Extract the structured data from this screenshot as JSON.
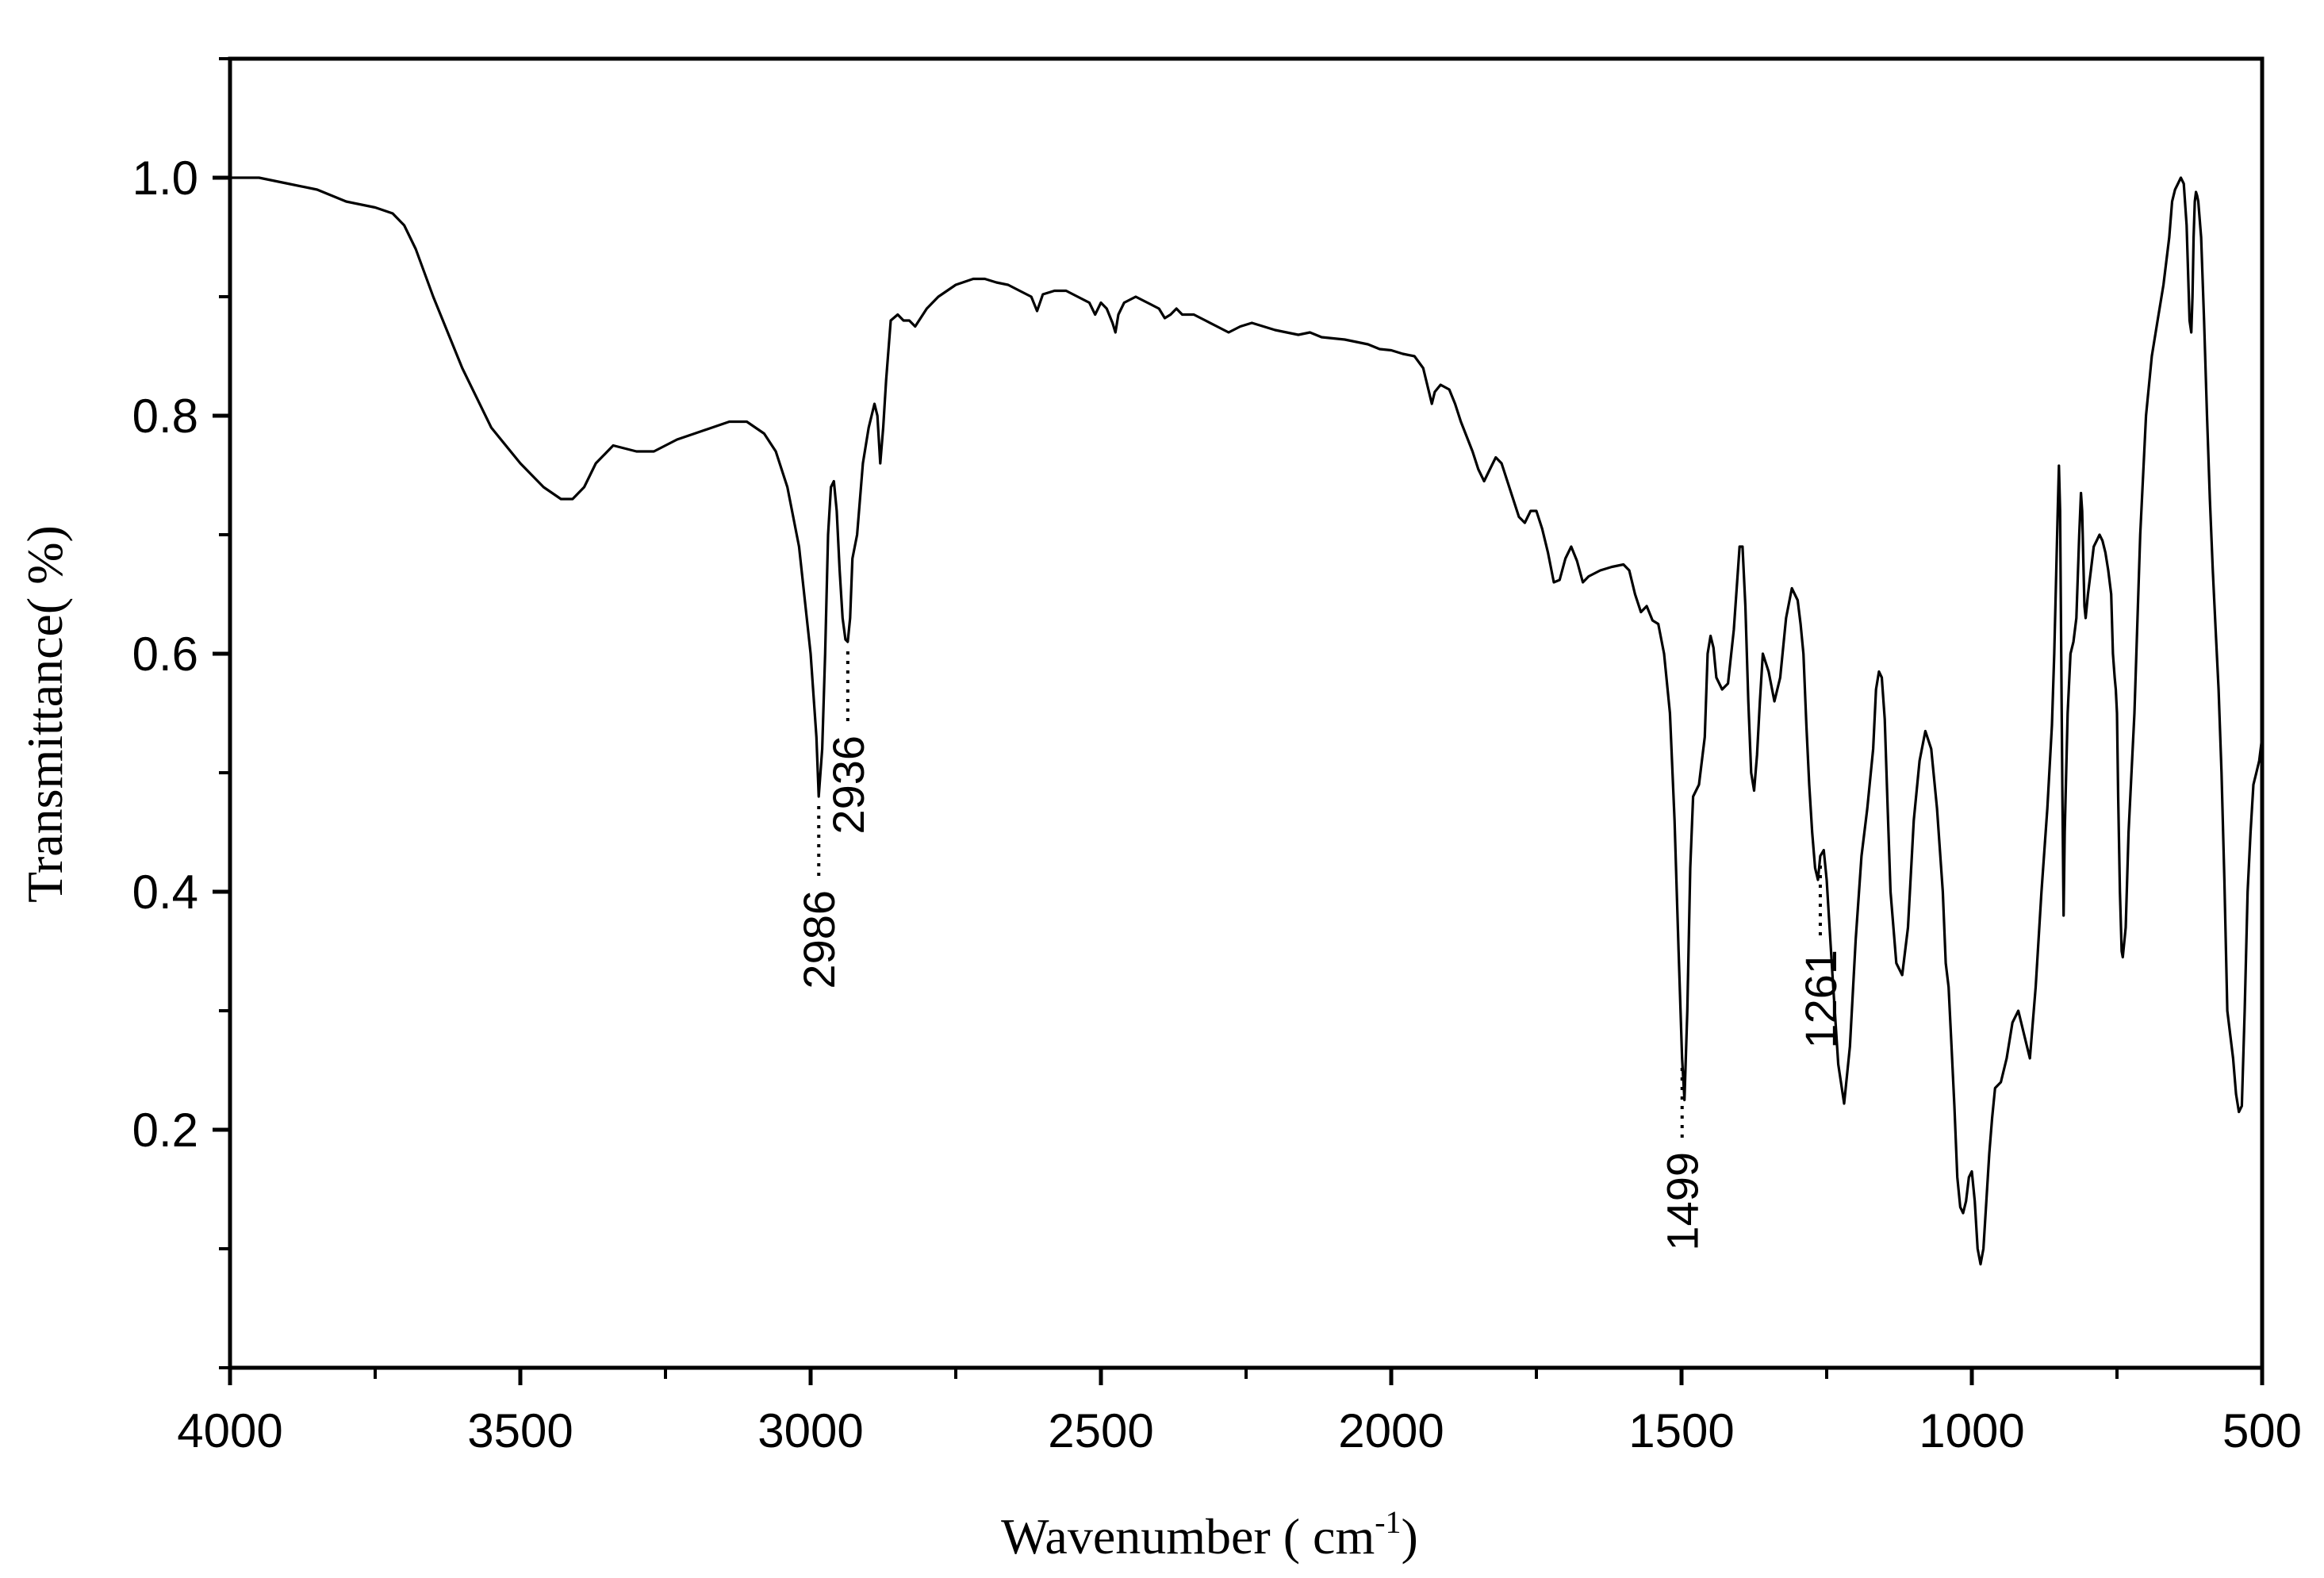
{
  "chart_data": {
    "type": "line",
    "title": "",
    "xlabel": "Wavenumber ( cm-1)",
    "xlabel_main": "Wavenumber (   cm",
    "xlabel_sup": "-1",
    "xlabel_close": ")",
    "ylabel": "Transmittance(   %)",
    "xlim": [
      4000,
      500
    ],
    "ylim": [
      0.0,
      1.1
    ],
    "x_reversed": true,
    "grid": false,
    "legend": "none",
    "x_ticks": [
      4000,
      3500,
      3000,
      2500,
      2000,
      1500,
      1000,
      500
    ],
    "x_tick_labels": [
      "4000",
      "3500",
      "3000",
      "2500",
      "2000",
      "1500",
      "1000",
      "500"
    ],
    "y_ticks": [
      0.2,
      0.4,
      0.6,
      0.8,
      1.0
    ],
    "y_tick_labels": [
      "0.2",
      "0.4",
      "0.6",
      "0.8",
      "1.0"
    ],
    "series": [
      {
        "x": [
          4000,
          3950,
          3900,
          3850,
          3800,
          3750,
          3720,
          3700,
          3680,
          3650,
          3600,
          3550,
          3500,
          3460,
          3430,
          3410,
          3390,
          3370,
          3340,
          3300,
          3270,
          3250,
          3230,
          3200,
          3170,
          3140,
          3110,
          3080,
          3060,
          3040,
          3020,
          3000,
          2990,
          2986,
          2980,
          2975,
          2970,
          2965,
          2960,
          2955,
          2950,
          2945,
          2940,
          2936,
          2932,
          2928,
          2920,
          2910,
          2900,
          2890,
          2885,
          2880,
          2875,
          2870,
          2862,
          2850,
          2840,
          2830,
          2820,
          2800,
          2780,
          2750,
          2720,
          2700,
          2680,
          2660,
          2640,
          2620,
          2610,
          2600,
          2580,
          2560,
          2540,
          2520,
          2510,
          2500,
          2490,
          2480,
          2475,
          2470,
          2460,
          2440,
          2420,
          2400,
          2390,
          2380,
          2370,
          2360,
          2340,
          2320,
          2300,
          2280,
          2260,
          2240,
          2220,
          2200,
          2180,
          2160,
          2140,
          2120,
          2100,
          2080,
          2060,
          2040,
          2020,
          2000,
          1980,
          1960,
          1945,
          1935,
          1930,
          1925,
          1915,
          1900,
          1890,
          1880,
          1860,
          1850,
          1840,
          1830,
          1820,
          1810,
          1800,
          1790,
          1780,
          1770,
          1760,
          1750,
          1740,
          1730,
          1720,
          1710,
          1700,
          1690,
          1680,
          1670,
          1660,
          1640,
          1620,
          1600,
          1590,
          1580,
          1570,
          1560,
          1550,
          1540,
          1530,
          1520,
          1512,
          1505,
          1499,
          1495,
          1490,
          1485,
          1480,
          1470,
          1460,
          1455,
          1450,
          1445,
          1440,
          1430,
          1420,
          1410,
          1400,
          1395,
          1390,
          1385,
          1380,
          1375,
          1370,
          1365,
          1360,
          1350,
          1340,
          1330,
          1320,
          1310,
          1300,
          1295,
          1290,
          1285,
          1280,
          1275,
          1270,
          1265,
          1261,
          1255,
          1250,
          1240,
          1230,
          1220,
          1210,
          1200,
          1190,
          1180,
          1170,
          1165,
          1160,
          1155,
          1150,
          1145,
          1140,
          1130,
          1120,
          1110,
          1100,
          1090,
          1080,
          1070,
          1060,
          1050,
          1045,
          1040,
          1035,
          1030,
          1025,
          1020,
          1015,
          1010,
          1005,
          1000,
          995,
          990,
          985,
          980,
          975,
          970,
          965,
          960,
          950,
          940,
          930,
          920,
          910,
          900,
          890,
          880,
          870,
          862,
          858,
          855,
          852,
          850,
          848,
          846,
          844,
          842,
          840,
          835,
          830,
          825,
          820,
          815,
          812,
          810,
          808,
          806,
          804,
          800,
          795,
          790,
          785,
          780,
          775,
          770,
          765,
          760,
          757,
          754,
          752,
          750,
          748,
          745,
          742,
          740,
          735,
          730,
          720,
          710,
          700,
          690,
          680,
          670,
          660,
          655,
          650,
          645,
          640,
          635,
          630,
          625,
          622,
          620,
          618,
          616,
          614,
          612,
          610,
          605,
          600,
          595,
          590,
          585,
          580,
          575,
          570,
          565,
          560,
          550,
          545,
          540,
          535,
          530,
          525,
          520,
          515,
          510,
          505,
          500
        ],
        "y": [
          1.0,
          1.0,
          0.995,
          0.99,
          0.98,
          0.975,
          0.97,
          0.96,
          0.94,
          0.9,
          0.84,
          0.79,
          0.76,
          0.74,
          0.73,
          0.73,
          0.74,
          0.76,
          0.775,
          0.77,
          0.77,
          0.775,
          0.78,
          0.785,
          0.79,
          0.795,
          0.795,
          0.785,
          0.77,
          0.74,
          0.69,
          0.6,
          0.53,
          0.48,
          0.52,
          0.6,
          0.7,
          0.74,
          0.745,
          0.72,
          0.67,
          0.63,
          0.612,
          0.61,
          0.63,
          0.68,
          0.7,
          0.76,
          0.79,
          0.81,
          0.8,
          0.76,
          0.79,
          0.83,
          0.88,
          0.885,
          0.88,
          0.88,
          0.875,
          0.89,
          0.9,
          0.91,
          0.915,
          0.915,
          0.912,
          0.91,
          0.905,
          0.9,
          0.888,
          0.902,
          0.905,
          0.905,
          0.9,
          0.895,
          0.885,
          0.895,
          0.89,
          0.878,
          0.87,
          0.885,
          0.895,
          0.9,
          0.895,
          0.89,
          0.882,
          0.885,
          0.89,
          0.885,
          0.885,
          0.88,
          0.875,
          0.87,
          0.875,
          0.878,
          0.875,
          0.872,
          0.87,
          0.868,
          0.87,
          0.866,
          0.865,
          0.864,
          0.862,
          0.86,
          0.856,
          0.855,
          0.852,
          0.85,
          0.84,
          0.82,
          0.81,
          0.82,
          0.826,
          0.822,
          0.81,
          0.795,
          0.77,
          0.755,
          0.745,
          0.755,
          0.765,
          0.76,
          0.745,
          0.73,
          0.715,
          0.71,
          0.72,
          0.72,
          0.705,
          0.685,
          0.66,
          0.662,
          0.68,
          0.69,
          0.678,
          0.66,
          0.665,
          0.67,
          0.673,
          0.675,
          0.67,
          0.65,
          0.635,
          0.64,
          0.628,
          0.625,
          0.6,
          0.55,
          0.46,
          0.35,
          0.26,
          0.225,
          0.3,
          0.42,
          0.48,
          0.49,
          0.53,
          0.6,
          0.615,
          0.605,
          0.58,
          0.57,
          0.575,
          0.62,
          0.69,
          0.69,
          0.64,
          0.56,
          0.5,
          0.485,
          0.515,
          0.56,
          0.6,
          0.585,
          0.56,
          0.58,
          0.63,
          0.655,
          0.645,
          0.625,
          0.6,
          0.54,
          0.49,
          0.45,
          0.42,
          0.41,
          0.43,
          0.435,
          0.41,
          0.33,
          0.255,
          0.222,
          0.27,
          0.36,
          0.43,
          0.47,
          0.52,
          0.57,
          0.585,
          0.58,
          0.545,
          0.47,
          0.4,
          0.34,
          0.33,
          0.37,
          0.46,
          0.51,
          0.535,
          0.52,
          0.47,
          0.4,
          0.34,
          0.32,
          0.27,
          0.22,
          0.16,
          0.135,
          0.13,
          0.14,
          0.16,
          0.165,
          0.14,
          0.1,
          0.087,
          0.1,
          0.14,
          0.18,
          0.21,
          0.235,
          0.24,
          0.26,
          0.29,
          0.3,
          0.28,
          0.26,
          0.32,
          0.4,
          0.47,
          0.54,
          0.6,
          0.66,
          0.72,
          0.758,
          0.72,
          0.6,
          0.48,
          0.38,
          0.45,
          0.55,
          0.6,
          0.61,
          0.63,
          0.7,
          0.735,
          0.72,
          0.68,
          0.64,
          0.63,
          0.65,
          0.67,
          0.69,
          0.695,
          0.7,
          0.695,
          0.685,
          0.67,
          0.65,
          0.6,
          0.58,
          0.57,
          0.55,
          0.48,
          0.4,
          0.35,
          0.345,
          0.37,
          0.45,
          0.55,
          0.7,
          0.8,
          0.85,
          0.88,
          0.91,
          0.95,
          0.98,
          0.99,
          0.995,
          1.0,
          0.995,
          0.96,
          0.88,
          0.87,
          0.9,
          0.95,
          0.98,
          0.988,
          0.985,
          0.98,
          0.95,
          0.88,
          0.8,
          0.73,
          0.67,
          0.62,
          0.57,
          0.5,
          0.41,
          0.3,
          0.26,
          0.23,
          0.215,
          0.22,
          0.3,
          0.4,
          0.45,
          0.49,
          0.5,
          0.51,
          0.53
        ]
      }
    ],
    "annotations": [
      {
        "label": "2986",
        "x": 2986
      },
      {
        "label": "2936",
        "x": 2936
      },
      {
        "label": "1499",
        "x": 1499
      },
      {
        "label": "1261",
        "x": 1261
      }
    ]
  }
}
